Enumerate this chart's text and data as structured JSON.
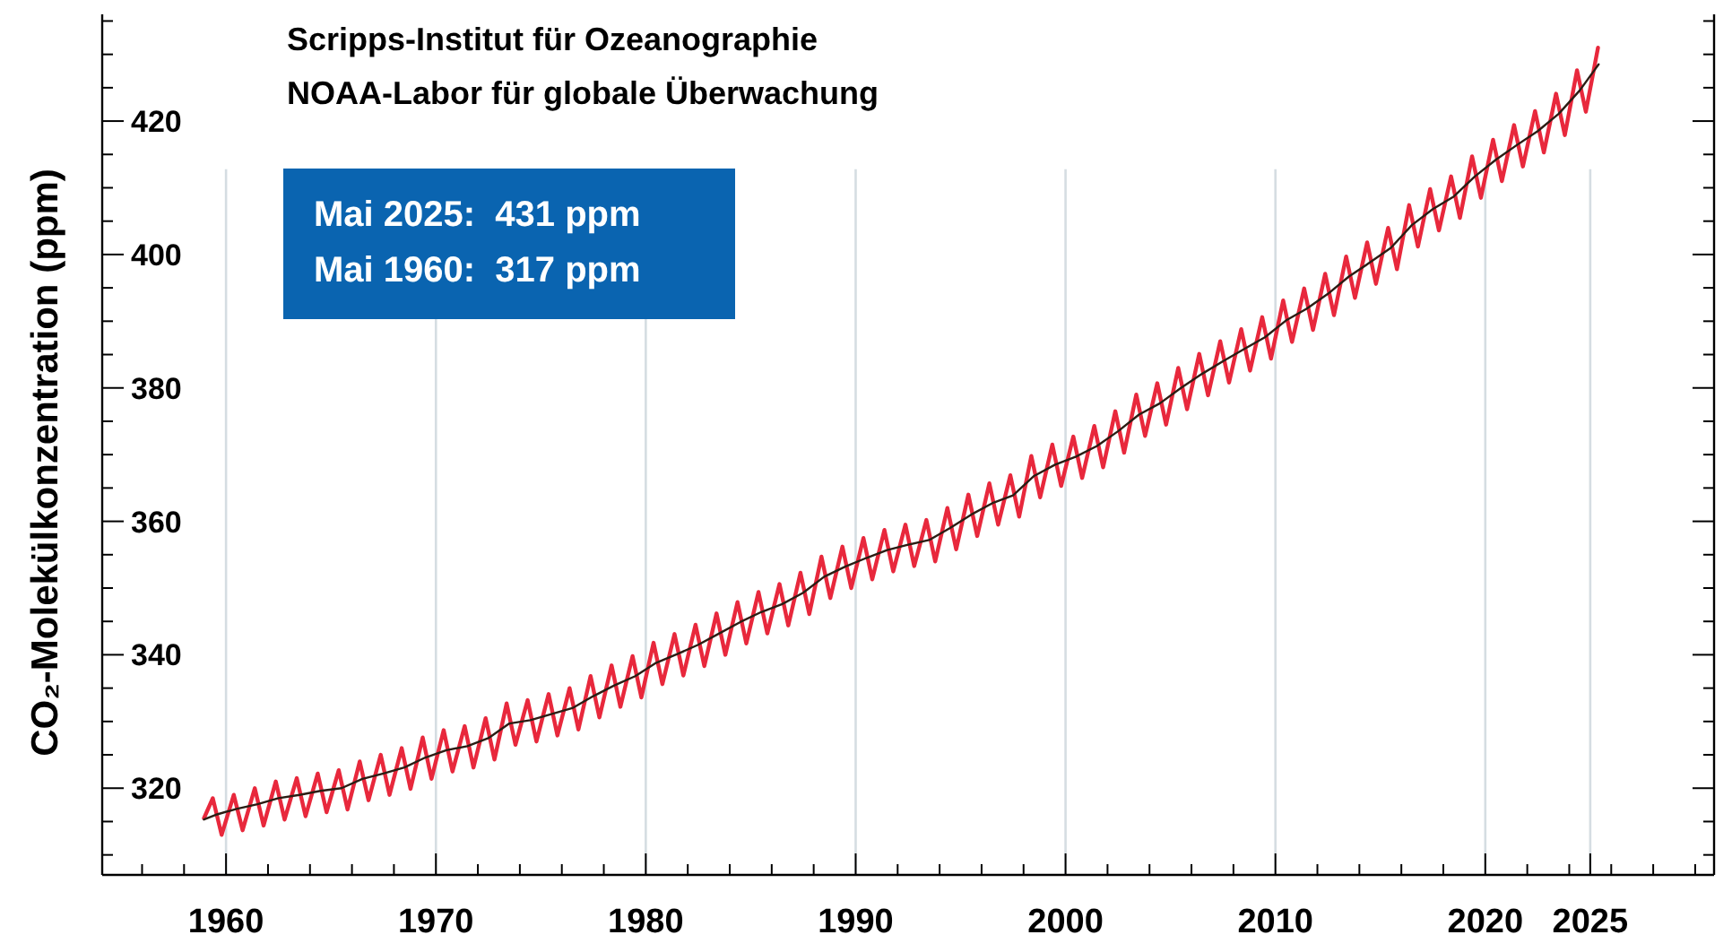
{
  "chart_data": {
    "type": "line",
    "title": "Scripps-Institut für Ozeanographie",
    "subtitle": "NOAA-Labor für globale Überwachung",
    "ylabel": "CO₂-Molekülkonzentration (ppm)",
    "annotations": [
      "Mai 2025:  431 ppm",
      "Mai 1960:  317 ppm"
    ],
    "xlim": [
      1954.1,
      2030.9
    ],
    "ylim": [
      307,
      436
    ],
    "grid": "x",
    "xticks": [
      {
        "value": 1956,
        "label": null
      },
      {
        "value": 1958,
        "label": null
      },
      1960,
      {
        "value": 1962,
        "label": null
      },
      {
        "value": 1964,
        "label": null
      },
      {
        "value": 1966,
        "label": null
      },
      {
        "value": 1968,
        "label": null
      },
      1970,
      {
        "value": 1972,
        "label": null
      },
      {
        "value": 1974,
        "label": null
      },
      {
        "value": 1976,
        "label": null
      },
      {
        "value": 1978,
        "label": null
      },
      1980,
      {
        "value": 1982,
        "label": null
      },
      {
        "value": 1984,
        "label": null
      },
      {
        "value": 1986,
        "label": null
      },
      {
        "value": 1988,
        "label": null
      },
      1990,
      {
        "value": 1992,
        "label": null
      },
      {
        "value": 1994,
        "label": null
      },
      {
        "value": 1996,
        "label": null
      },
      {
        "value": 1998,
        "label": null
      },
      2000,
      {
        "value": 2002,
        "label": null
      },
      {
        "value": 2004,
        "label": null
      },
      {
        "value": 2006,
        "label": null
      },
      {
        "value": 2008,
        "label": null
      },
      2010,
      {
        "value": 2012,
        "label": null
      },
      {
        "value": 2014,
        "label": null
      },
      {
        "value": 2016,
        "label": null
      },
      {
        "value": 2018,
        "label": null
      },
      2020,
      {
        "value": 2022,
        "label": null
      },
      {
        "value": 2024,
        "label": null
      },
      2025,
      {
        "value": 2026,
        "label": null
      },
      {
        "value": 2028,
        "label": null
      },
      {
        "value": 2030,
        "label": null
      }
    ],
    "yticks": [
      {
        "value": 310,
        "label": null
      },
      {
        "value": 315,
        "label": null
      },
      320,
      {
        "value": 325,
        "label": null
      },
      {
        "value": 330,
        "label": null
      },
      {
        "value": 335,
        "label": null
      },
      340,
      {
        "value": 345,
        "label": null
      },
      {
        "value": 350,
        "label": null
      },
      {
        "value": 355,
        "label": null
      },
      360,
      {
        "value": 365,
        "label": null
      },
      {
        "value": 370,
        "label": null
      },
      {
        "value": 375,
        "label": null
      },
      380,
      {
        "value": 385,
        "label": null
      },
      {
        "value": 390,
        "label": null
      },
      {
        "value": 395,
        "label": null
      },
      400,
      {
        "value": 405,
        "label": null
      },
      {
        "value": 410,
        "label": null
      },
      {
        "value": 415,
        "label": null
      },
      420,
      {
        "value": 425,
        "label": null
      },
      {
        "value": 430,
        "label": null
      },
      {
        "value": 435,
        "label": null
      }
    ],
    "series": [
      {
        "color": "#e8283c",
        "x": [
          1958.95,
          1959.37,
          1959.79,
          1960.37,
          1960.79,
          1961.37,
          1961.79,
          1962.37,
          1962.79,
          1963.37,
          1963.79,
          1964.37,
          1964.79,
          1965.37,
          1965.79,
          1966.37,
          1966.79,
          1967.37,
          1967.79,
          1968.37,
          1968.79,
          1969.37,
          1969.79,
          1970.37,
          1970.79,
          1971.37,
          1971.79,
          1972.37,
          1972.79,
          1973.37,
          1973.79,
          1974.37,
          1974.79,
          1975.37,
          1975.79,
          1976.37,
          1976.79,
          1977.37,
          1977.79,
          1978.37,
          1978.79,
          1979.37,
          1979.79,
          1980.37,
          1980.79,
          1981.37,
          1981.79,
          1982.37,
          1982.79,
          1983.37,
          1983.79,
          1984.37,
          1984.79,
          1985.37,
          1985.79,
          1986.37,
          1986.79,
          1987.37,
          1987.79,
          1988.37,
          1988.79,
          1989.37,
          1989.79,
          1990.37,
          1990.79,
          1991.37,
          1991.79,
          1992.37,
          1992.79,
          1993.37,
          1993.79,
          1994.37,
          1994.79,
          1995.37,
          1995.79,
          1996.37,
          1996.79,
          1997.37,
          1997.79,
          1998.37,
          1998.79,
          1999.37,
          1999.79,
          2000.37,
          2000.79,
          2001.37,
          2001.79,
          2002.37,
          2002.79,
          2003.37,
          2003.79,
          2004.37,
          2004.79,
          2005.37,
          2005.79,
          2006.37,
          2006.79,
          2007.37,
          2007.79,
          2008.37,
          2008.79,
          2009.37,
          2009.79,
          2010.37,
          2010.79,
          2011.37,
          2011.79,
          2012.37,
          2012.79,
          2013.37,
          2013.79,
          2014.37,
          2014.79,
          2015.37,
          2015.79,
          2016.37,
          2016.79,
          2017.37,
          2017.79,
          2018.37,
          2018.79,
          2019.37,
          2019.79,
          2020.37,
          2020.79,
          2021.37,
          2021.79,
          2022.37,
          2022.79,
          2023.37,
          2023.79,
          2024.37,
          2024.79,
          2025.37
        ],
        "values": [
          315.5,
          318.5,
          313.0,
          319.0,
          313.7,
          320.0,
          314.4,
          321.0,
          315.3,
          321.5,
          315.8,
          322.2,
          316.4,
          322.7,
          316.8,
          324.0,
          318.2,
          325.0,
          319.0,
          326.0,
          319.9,
          327.6,
          321.4,
          328.7,
          322.5,
          329.3,
          323.1,
          330.5,
          324.3,
          332.7,
          326.5,
          333.2,
          327.0,
          334.1,
          327.9,
          335.0,
          328.8,
          336.8,
          330.6,
          338.4,
          332.2,
          339.8,
          333.6,
          341.8,
          335.6,
          343.1,
          336.9,
          344.5,
          338.3,
          346.2,
          340.0,
          347.9,
          341.7,
          349.4,
          343.2,
          350.6,
          344.4,
          352.3,
          346.1,
          354.7,
          348.5,
          356.2,
          350.0,
          357.5,
          351.3,
          358.7,
          352.5,
          359.5,
          353.3,
          360.2,
          354.0,
          362.0,
          355.8,
          364.0,
          357.8,
          365.7,
          359.5,
          366.9,
          360.7,
          369.8,
          363.6,
          371.5,
          365.3,
          372.7,
          366.5,
          374.3,
          368.1,
          376.5,
          370.3,
          379.0,
          372.8,
          380.7,
          374.5,
          383.0,
          376.8,
          385.1,
          378.9,
          387.0,
          380.8,
          388.8,
          382.6,
          390.6,
          384.4,
          393.1,
          386.9,
          394.9,
          388.7,
          397.1,
          390.9,
          399.7,
          393.5,
          401.8,
          395.6,
          404.0,
          397.8,
          407.4,
          401.2,
          409.8,
          403.6,
          411.7,
          405.5,
          414.7,
          408.5,
          417.2,
          411.0,
          419.4,
          413.2,
          421.5,
          415.3,
          424.1,
          417.9,
          427.6,
          421.4,
          431.0
        ]
      },
      {
        "color": "#2b1d14",
        "x": [
          1958.95,
          1959.5,
          1960.5,
          1961.5,
          1962.5,
          1963.5,
          1964.5,
          1965.5,
          1966.5,
          1967.5,
          1968.5,
          1969.5,
          1970.5,
          1971.5,
          1972.5,
          1973.5,
          1974.5,
          1975.5,
          1976.5,
          1977.5,
          1978.5,
          1979.5,
          1980.5,
          1981.5,
          1982.5,
          1983.5,
          1984.5,
          1985.5,
          1986.5,
          1987.5,
          1988.5,
          1989.5,
          1990.5,
          1991.5,
          1992.5,
          1993.5,
          1994.5,
          1995.5,
          1996.5,
          1997.5,
          1998.5,
          1999.5,
          2000.5,
          2001.5,
          2002.5,
          2003.5,
          2004.5,
          2005.5,
          2006.5,
          2007.5,
          2008.5,
          2009.5,
          2010.5,
          2011.5,
          2012.5,
          2013.5,
          2014.5,
          2015.5,
          2016.5,
          2017.5,
          2018.5,
          2019.5,
          2020.5,
          2021.5,
          2022.5,
          2023.5,
          2024.5,
          2025.4
        ],
        "values": [
          315.3,
          316.0,
          316.9,
          317.6,
          318.5,
          319.0,
          319.6,
          320.0,
          321.4,
          322.2,
          323.1,
          324.6,
          325.7,
          326.3,
          327.5,
          329.7,
          330.2,
          331.1,
          332.0,
          333.8,
          335.4,
          336.8,
          338.8,
          340.1,
          341.5,
          343.2,
          344.9,
          346.4,
          347.6,
          349.3,
          351.7,
          353.2,
          354.5,
          355.7,
          356.5,
          357.2,
          359.0,
          361.0,
          362.7,
          363.9,
          366.8,
          368.5,
          369.7,
          371.3,
          373.5,
          376.0,
          377.7,
          380.0,
          382.1,
          384.0,
          385.8,
          387.6,
          390.1,
          391.9,
          394.1,
          396.7,
          398.8,
          401.0,
          404.4,
          406.8,
          408.7,
          411.7,
          414.2,
          416.4,
          418.5,
          421.1,
          424.6,
          428.5
        ]
      }
    ]
  }
}
